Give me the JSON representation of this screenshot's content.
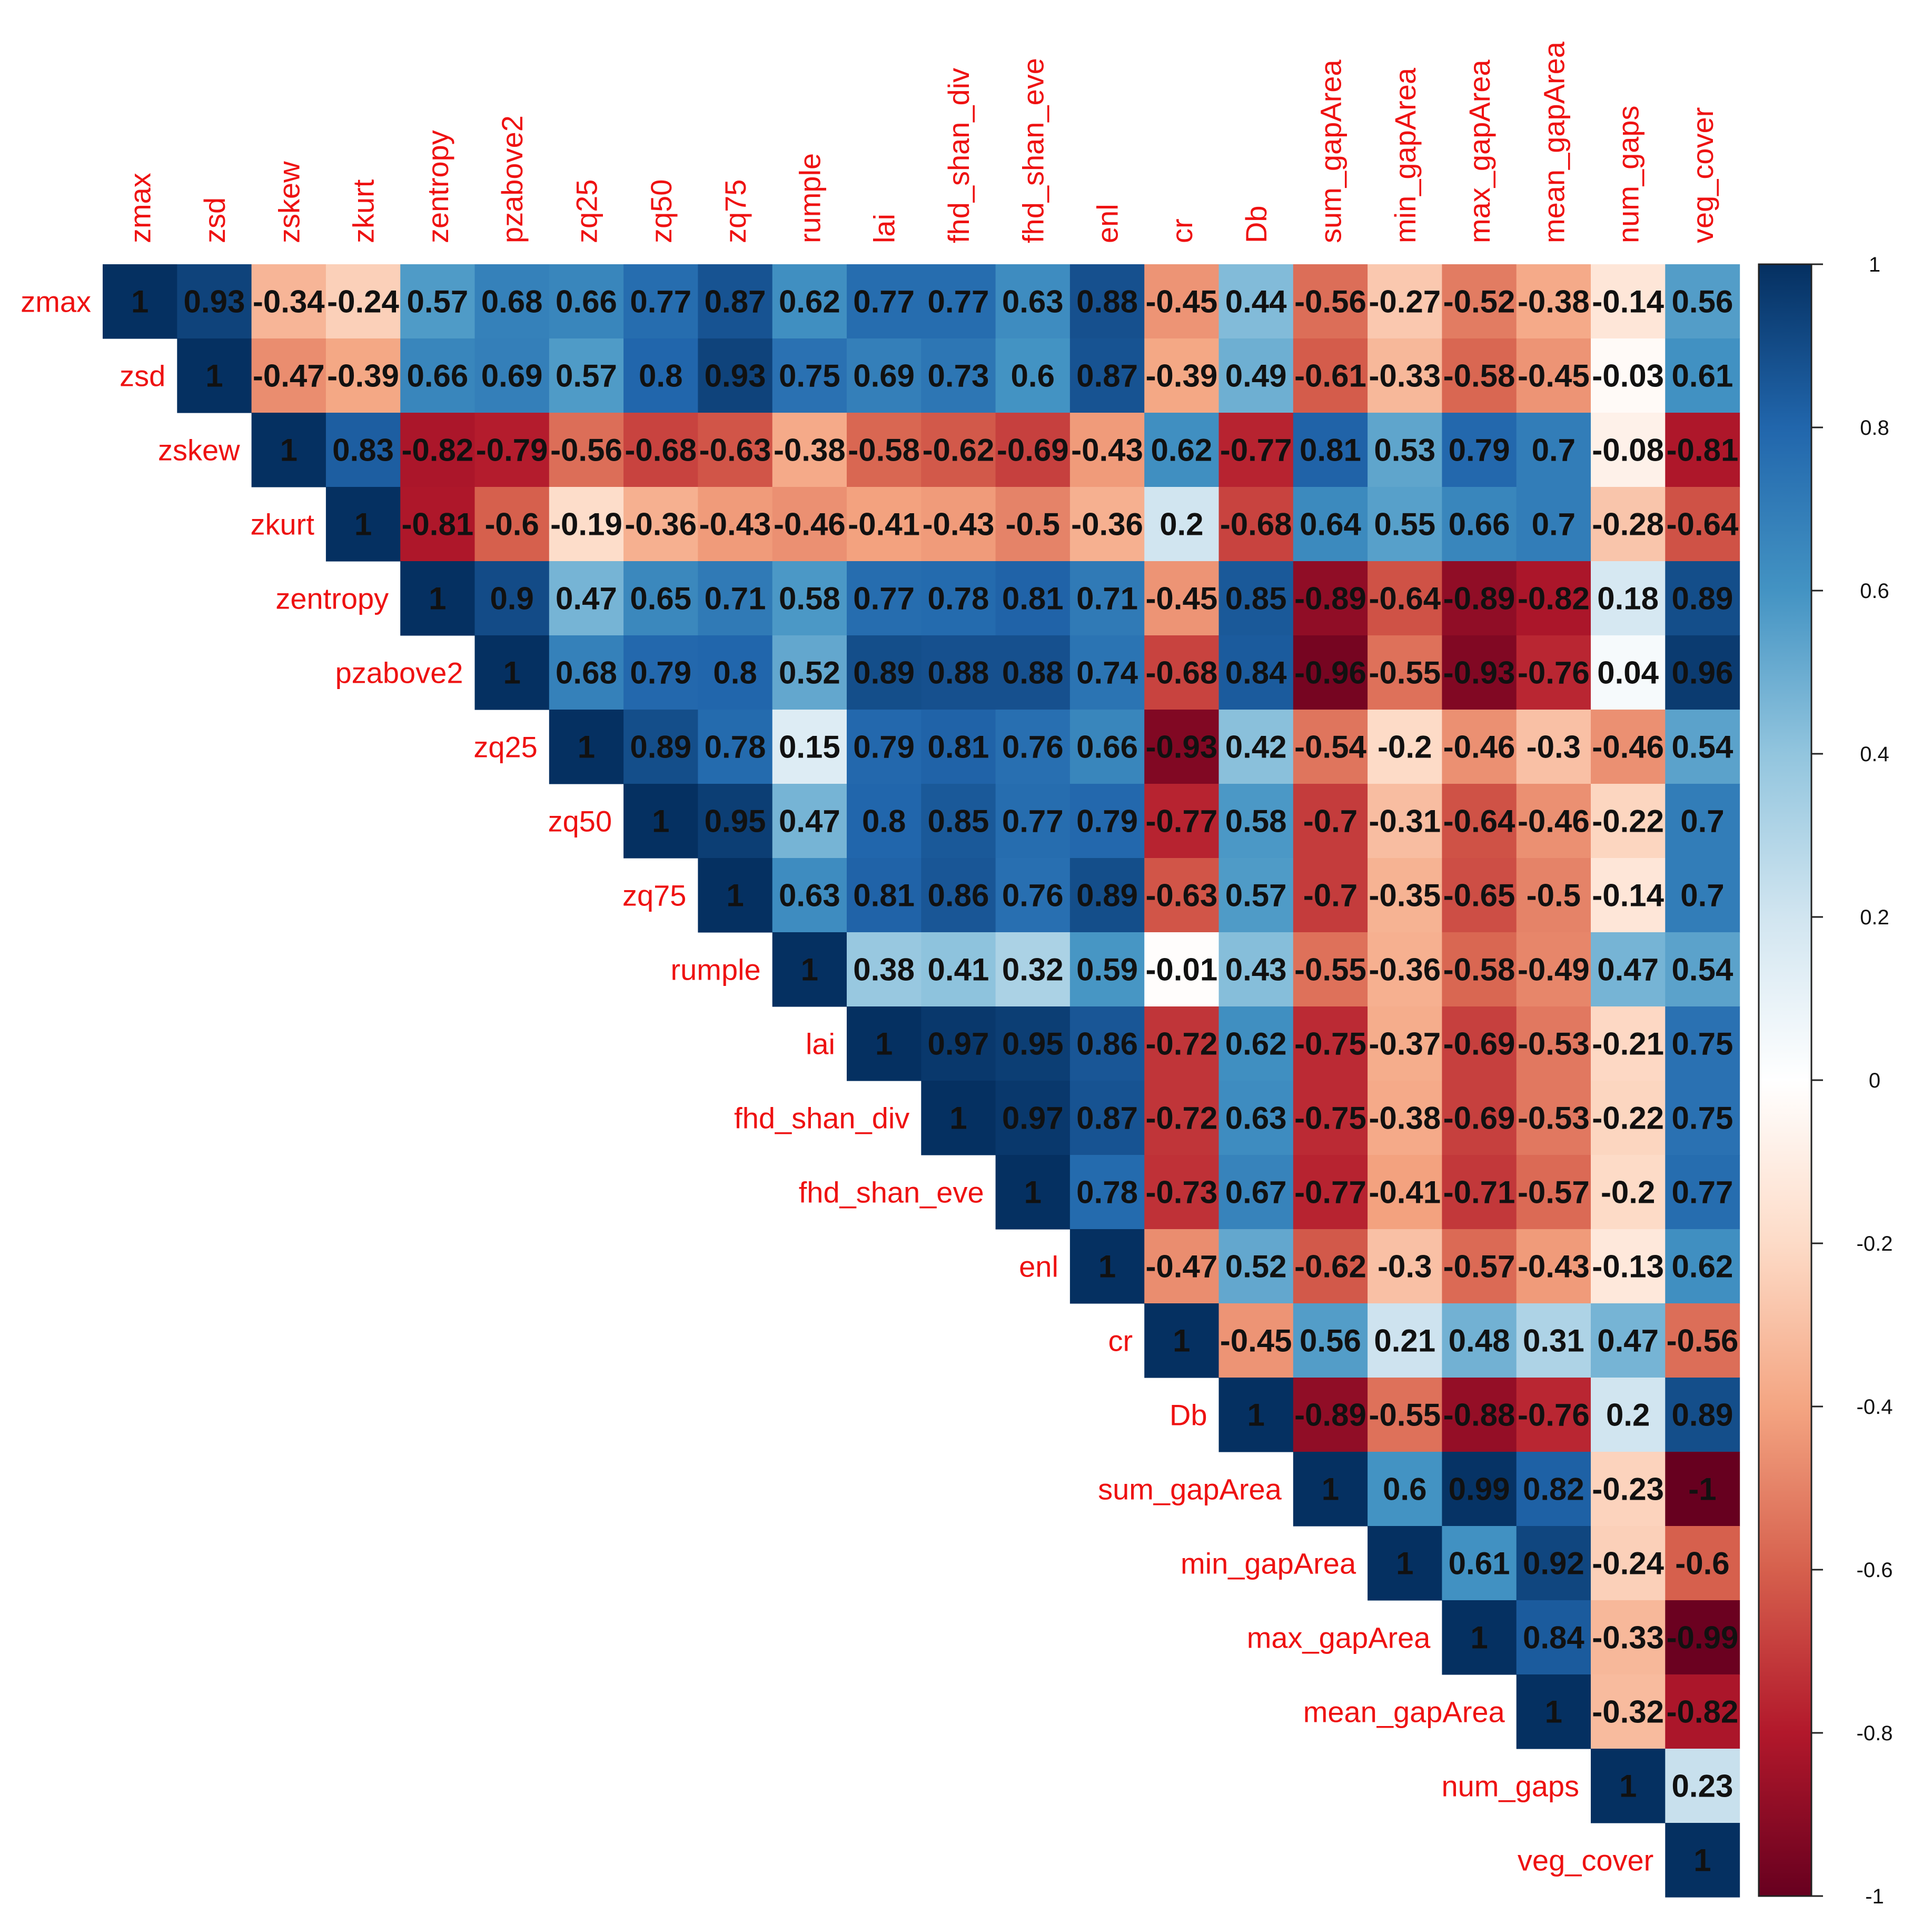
{
  "chart_data": {
    "type": "heatmap",
    "title": "",
    "variables": [
      "zmax",
      "zsd",
      "zskew",
      "zkurt",
      "zentropy",
      "pzabove2",
      "zq25",
      "zq50",
      "zq75",
      "rumple",
      "lai",
      "fhd_shan_div",
      "fhd_shan_eve",
      "enl",
      "cr",
      "Db",
      "sum_gapArea",
      "min_gapArea",
      "max_gapArea",
      "mean_gapArea",
      "num_gaps",
      "veg_cover"
    ],
    "display": "upper-triangle",
    "matrix": [
      [
        1,
        0.93,
        -0.34,
        -0.24,
        0.57,
        0.68,
        0.66,
        0.77,
        0.87,
        0.62,
        0.77,
        0.77,
        0.63,
        0.88,
        -0.45,
        0.44,
        -0.56,
        -0.27,
        -0.52,
        -0.38,
        -0.14,
        0.56
      ],
      [
        null,
        1,
        -0.47,
        -0.39,
        0.66,
        0.69,
        0.57,
        0.8,
        0.93,
        0.75,
        0.69,
        0.73,
        0.6,
        0.87,
        -0.39,
        0.49,
        -0.61,
        -0.33,
        -0.58,
        -0.45,
        -0.03,
        0.61
      ],
      [
        null,
        null,
        1,
        0.83,
        -0.82,
        -0.79,
        -0.56,
        -0.68,
        -0.63,
        -0.38,
        -0.58,
        -0.62,
        -0.69,
        -0.43,
        0.62,
        -0.77,
        0.81,
        0.53,
        0.79,
        0.7,
        -0.08,
        -0.81
      ],
      [
        null,
        null,
        null,
        1,
        -0.81,
        -0.6,
        -0.19,
        -0.36,
        -0.43,
        -0.46,
        -0.41,
        -0.43,
        -0.5,
        -0.36,
        0.2,
        -0.68,
        0.64,
        0.55,
        0.66,
        0.7,
        -0.28,
        -0.64
      ],
      [
        null,
        null,
        null,
        null,
        1,
        0.9,
        0.47,
        0.65,
        0.71,
        0.58,
        0.77,
        0.78,
        0.81,
        0.71,
        -0.45,
        0.85,
        -0.89,
        -0.64,
        -0.89,
        -0.82,
        0.18,
        0.89
      ],
      [
        null,
        null,
        null,
        null,
        null,
        1,
        0.68,
        0.79,
        0.8,
        0.52,
        0.89,
        0.88,
        0.88,
        0.74,
        -0.68,
        0.84,
        -0.96,
        -0.55,
        -0.93,
        -0.76,
        0.04,
        0.96
      ],
      [
        null,
        null,
        null,
        null,
        null,
        null,
        1,
        0.89,
        0.78,
        0.15,
        0.79,
        0.81,
        0.76,
        0.66,
        -0.93,
        0.42,
        -0.54,
        -0.2,
        -0.46,
        -0.3,
        -0.46,
        0.54
      ],
      [
        null,
        null,
        null,
        null,
        null,
        null,
        null,
        1,
        0.95,
        0.47,
        0.8,
        0.85,
        0.77,
        0.79,
        -0.77,
        0.58,
        -0.7,
        -0.31,
        -0.64,
        -0.46,
        -0.22,
        0.7
      ],
      [
        null,
        null,
        null,
        null,
        null,
        null,
        null,
        null,
        1,
        0.63,
        0.81,
        0.86,
        0.76,
        0.89,
        -0.63,
        0.57,
        -0.7,
        -0.35,
        -0.65,
        -0.5,
        -0.14,
        0.7
      ],
      [
        null,
        null,
        null,
        null,
        null,
        null,
        null,
        null,
        null,
        1,
        0.38,
        0.41,
        0.32,
        0.59,
        -0.01,
        0.43,
        -0.55,
        -0.36,
        -0.58,
        -0.49,
        0.47,
        0.54
      ],
      [
        null,
        null,
        null,
        null,
        null,
        null,
        null,
        null,
        null,
        null,
        1,
        0.97,
        0.95,
        0.86,
        -0.72,
        0.62,
        -0.75,
        -0.37,
        -0.69,
        -0.53,
        -0.21,
        0.75
      ],
      [
        null,
        null,
        null,
        null,
        null,
        null,
        null,
        null,
        null,
        null,
        null,
        1,
        0.97,
        0.87,
        -0.72,
        0.63,
        -0.75,
        -0.38,
        -0.69,
        -0.53,
        -0.22,
        0.75
      ],
      [
        null,
        null,
        null,
        null,
        null,
        null,
        null,
        null,
        null,
        null,
        null,
        null,
        1,
        0.78,
        -0.73,
        0.67,
        -0.77,
        -0.41,
        -0.71,
        -0.57,
        -0.2,
        0.77
      ],
      [
        null,
        null,
        null,
        null,
        null,
        null,
        null,
        null,
        null,
        null,
        null,
        null,
        null,
        1,
        -0.47,
        0.52,
        -0.62,
        -0.3,
        -0.57,
        -0.43,
        -0.13,
        0.62
      ],
      [
        null,
        null,
        null,
        null,
        null,
        null,
        null,
        null,
        null,
        null,
        null,
        null,
        null,
        null,
        1,
        -0.45,
        0.56,
        0.21,
        0.48,
        0.31,
        0.47,
        -0.56
      ],
      [
        null,
        null,
        null,
        null,
        null,
        null,
        null,
        null,
        null,
        null,
        null,
        null,
        null,
        null,
        null,
        1,
        -0.89,
        -0.55,
        -0.88,
        -0.76,
        0.2,
        0.89
      ],
      [
        null,
        null,
        null,
        null,
        null,
        null,
        null,
        null,
        null,
        null,
        null,
        null,
        null,
        null,
        null,
        null,
        1,
        0.6,
        0.99,
        0.82,
        -0.23,
        -1
      ],
      [
        null,
        null,
        null,
        null,
        null,
        null,
        null,
        null,
        null,
        null,
        null,
        null,
        null,
        null,
        null,
        null,
        null,
        1,
        0.61,
        0.92,
        -0.24,
        -0.6
      ],
      [
        null,
        null,
        null,
        null,
        null,
        null,
        null,
        null,
        null,
        null,
        null,
        null,
        null,
        null,
        null,
        null,
        null,
        null,
        1,
        0.84,
        -0.33,
        -0.99
      ],
      [
        null,
        null,
        null,
        null,
        null,
        null,
        null,
        null,
        null,
        null,
        null,
        null,
        null,
        null,
        null,
        null,
        null,
        null,
        null,
        1,
        -0.32,
        -0.82
      ],
      [
        null,
        null,
        null,
        null,
        null,
        null,
        null,
        null,
        null,
        null,
        null,
        null,
        null,
        null,
        null,
        null,
        null,
        null,
        null,
        null,
        1,
        0.23
      ],
      [
        null,
        null,
        null,
        null,
        null,
        null,
        null,
        null,
        null,
        null,
        null,
        null,
        null,
        null,
        null,
        null,
        null,
        null,
        null,
        null,
        null,
        1
      ]
    ],
    "colorbar": {
      "range": [
        -1,
        1
      ],
      "ticks": [
        "1",
        "0.8",
        "0.6",
        "0.4",
        "0.2",
        "0",
        "-0.2",
        "-0.4",
        "-0.6",
        "-0.8",
        "-1"
      ],
      "placement": "right"
    },
    "colors": {
      "strong_negative": "#67001f",
      "negative": "#d6604d",
      "neutral": "#ffffff",
      "positive": "#4393c3",
      "strong_positive": "#053061",
      "label": "#ee1111",
      "value_text": "#111111"
    }
  }
}
